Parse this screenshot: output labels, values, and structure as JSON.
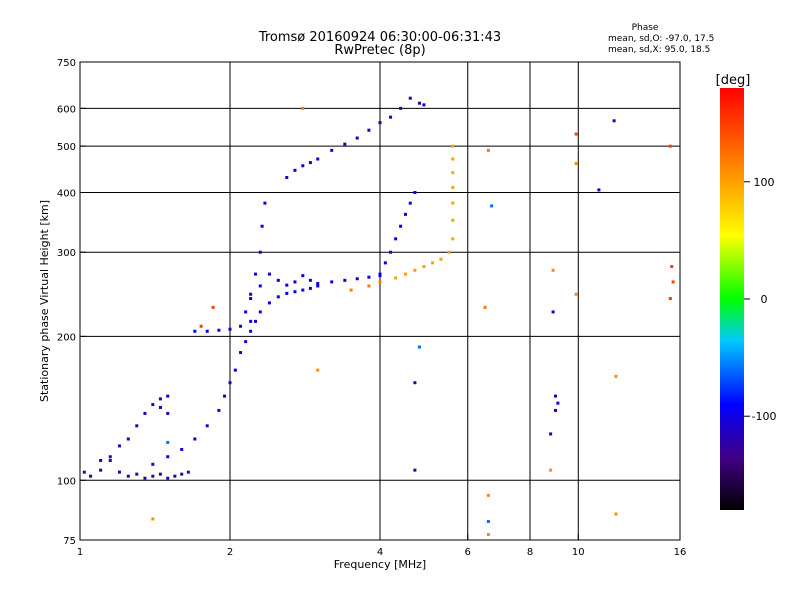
{
  "chart_data": {
    "type": "scatter",
    "title": "Tromsø 20160924 06:30:00-06:31:43",
    "subtitle": "RwPretec (8p)",
    "xlabel": "Frequency [MHz]",
    "ylabel": "Stationary phase Virtual Height [km]",
    "x_scale": "log",
    "y_scale": "log",
    "xlim": [
      1,
      16
    ],
    "ylim": [
      75,
      750
    ],
    "grid": true,
    "x_ticks": [
      1,
      2,
      4,
      6,
      8,
      10,
      16
    ],
    "x_tick_labels": [
      "1",
      "2",
      "4",
      "6",
      "8",
      "10",
      "16"
    ],
    "y_ticks": [
      75,
      100,
      200,
      300,
      400,
      500,
      600,
      750
    ],
    "y_tick_labels": [
      "75",
      "100",
      "200",
      "300",
      "400",
      "500",
      "600",
      "750"
    ],
    "stats": {
      "heading": "Phase",
      "line1": "mean, sd,O: -97.0, 17.5",
      "line2": "mean, sd,X:  95.0, 18.5"
    },
    "colorbar": {
      "label": "[deg]",
      "range": [
        -180,
        180
      ],
      "ticks": [
        100,
        0,
        -100
      ],
      "tick_labels": [
        "100",
        "0",
        "-100"
      ]
    },
    "traces": [
      {
        "name_hidden": true,
        "phase": -120,
        "points": [
          [
            1.02,
            104
          ],
          [
            1.05,
            102
          ],
          [
            1.1,
            105
          ],
          [
            1.15,
            110
          ],
          [
            1.2,
            104
          ],
          [
            1.25,
            102
          ],
          [
            1.3,
            103
          ],
          [
            1.35,
            101
          ],
          [
            1.4,
            102
          ],
          [
            1.45,
            103
          ],
          [
            1.5,
            101
          ],
          [
            1.55,
            102
          ],
          [
            1.6,
            103
          ],
          [
            1.65,
            104
          ]
        ]
      },
      {
        "phase": -115,
        "points": [
          [
            1.1,
            110
          ],
          [
            1.15,
            112
          ],
          [
            1.2,
            118
          ],
          [
            1.25,
            122
          ],
          [
            1.3,
            130
          ],
          [
            1.35,
            138
          ],
          [
            1.4,
            144
          ],
          [
            1.45,
            148
          ],
          [
            1.5,
            150
          ],
          [
            1.45,
            142
          ],
          [
            1.5,
            138
          ]
        ]
      },
      {
        "phase": -105,
        "points": [
          [
            1.4,
            108
          ],
          [
            1.5,
            112
          ],
          [
            1.6,
            116
          ],
          [
            1.7,
            122
          ],
          [
            1.8,
            130
          ],
          [
            1.9,
            140
          ],
          [
            1.95,
            150
          ],
          [
            2.0,
            160
          ],
          [
            2.05,
            170
          ],
          [
            2.1,
            185
          ],
          [
            2.15,
            195
          ],
          [
            2.2,
            205
          ],
          [
            2.25,
            215
          ]
        ]
      },
      {
        "phase": -100,
        "points": [
          [
            1.7,
            205
          ],
          [
            1.8,
            205
          ],
          [
            1.9,
            206
          ],
          [
            2.0,
            207
          ],
          [
            2.1,
            210
          ],
          [
            2.15,
            225
          ],
          [
            2.2,
            245
          ],
          [
            2.25,
            270
          ],
          [
            2.3,
            300
          ],
          [
            2.32,
            340
          ],
          [
            2.35,
            380
          ]
        ]
      },
      {
        "phase": -95,
        "points": [
          [
            2.2,
            215
          ],
          [
            2.3,
            225
          ],
          [
            2.4,
            235
          ],
          [
            2.5,
            242
          ],
          [
            2.6,
            246
          ],
          [
            2.7,
            248
          ],
          [
            2.8,
            250
          ],
          [
            2.9,
            252
          ],
          [
            3.0,
            255
          ],
          [
            3.2,
            260
          ],
          [
            3.4,
            262
          ],
          [
            3.6,
            264
          ],
          [
            3.8,
            266
          ],
          [
            4.0,
            268
          ]
        ]
      },
      {
        "phase": -100,
        "points": [
          [
            2.2,
            240
          ],
          [
            2.3,
            255
          ],
          [
            2.4,
            270
          ],
          [
            2.5,
            262
          ],
          [
            2.6,
            256
          ],
          [
            2.7,
            260
          ],
          [
            2.8,
            268
          ],
          [
            2.9,
            262
          ],
          [
            3.0,
            258
          ]
        ]
      },
      {
        "phase": -110,
        "points": [
          [
            2.6,
            430
          ],
          [
            2.7,
            445
          ],
          [
            2.8,
            455
          ],
          [
            2.9,
            462
          ],
          [
            3.0,
            470
          ],
          [
            3.2,
            490
          ],
          [
            3.4,
            505
          ],
          [
            3.6,
            520
          ],
          [
            3.8,
            540
          ],
          [
            4.0,
            560
          ],
          [
            4.2,
            575
          ],
          [
            4.4,
            600
          ],
          [
            4.6,
            630
          ]
        ]
      },
      {
        "phase": -95,
        "points": [
          [
            4.0,
            270
          ],
          [
            4.1,
            285
          ],
          [
            4.2,
            300
          ],
          [
            4.3,
            320
          ],
          [
            4.4,
            340
          ],
          [
            4.5,
            360
          ],
          [
            4.6,
            380
          ],
          [
            4.7,
            400
          ]
        ]
      },
      {
        "phase": 100,
        "points": [
          [
            4.3,
            265
          ],
          [
            4.5,
            270
          ],
          [
            4.7,
            275
          ],
          [
            4.9,
            280
          ],
          [
            5.1,
            285
          ],
          [
            5.3,
            290
          ],
          [
            5.5,
            300
          ],
          [
            5.6,
            320
          ],
          [
            5.6,
            350
          ],
          [
            5.6,
            380
          ],
          [
            5.6,
            410
          ],
          [
            5.6,
            440
          ],
          [
            5.6,
            470
          ],
          [
            5.6,
            500
          ]
        ]
      },
      {
        "phase": 120,
        "points": [
          [
            3.5,
            250
          ],
          [
            3.8,
            255
          ],
          [
            4.0,
            260
          ],
          [
            2.8,
            600
          ],
          [
            6.6,
            490
          ],
          [
            6.5,
            230
          ]
        ]
      },
      {
        "phase": 150,
        "points": [
          [
            9.9,
            530
          ],
          [
            15.3,
            500
          ],
          [
            15.4,
            280
          ],
          [
            15.5,
            260
          ],
          [
            15.3,
            240
          ],
          [
            1.75,
            210
          ],
          [
            1.85,
            230
          ]
        ]
      },
      {
        "phase": -60,
        "points": [
          [
            4.8,
            190
          ],
          [
            6.7,
            375
          ],
          [
            6.6,
            82
          ],
          [
            1.5,
            120
          ]
        ]
      },
      {
        "phase": -110,
        "points": [
          [
            4.7,
            105
          ],
          [
            4.7,
            160
          ],
          [
            9.0,
            150
          ],
          [
            9.1,
            145
          ],
          [
            9.0,
            140
          ],
          [
            8.8,
            125
          ],
          [
            8.9,
            225
          ],
          [
            11.8,
            565
          ],
          [
            11.0,
            405
          ],
          [
            4.8,
            615
          ],
          [
            4.9,
            610
          ]
        ]
      },
      {
        "phase": 110,
        "points": [
          [
            9.9,
            460
          ],
          [
            9.9,
            245
          ],
          [
            8.9,
            275
          ],
          [
            8.8,
            105
          ],
          [
            11.9,
            165
          ],
          [
            11.9,
            85
          ],
          [
            6.6,
            93
          ],
          [
            6.6,
            77
          ],
          [
            1.4,
            83
          ],
          [
            3.0,
            170
          ]
        ]
      }
    ]
  }
}
